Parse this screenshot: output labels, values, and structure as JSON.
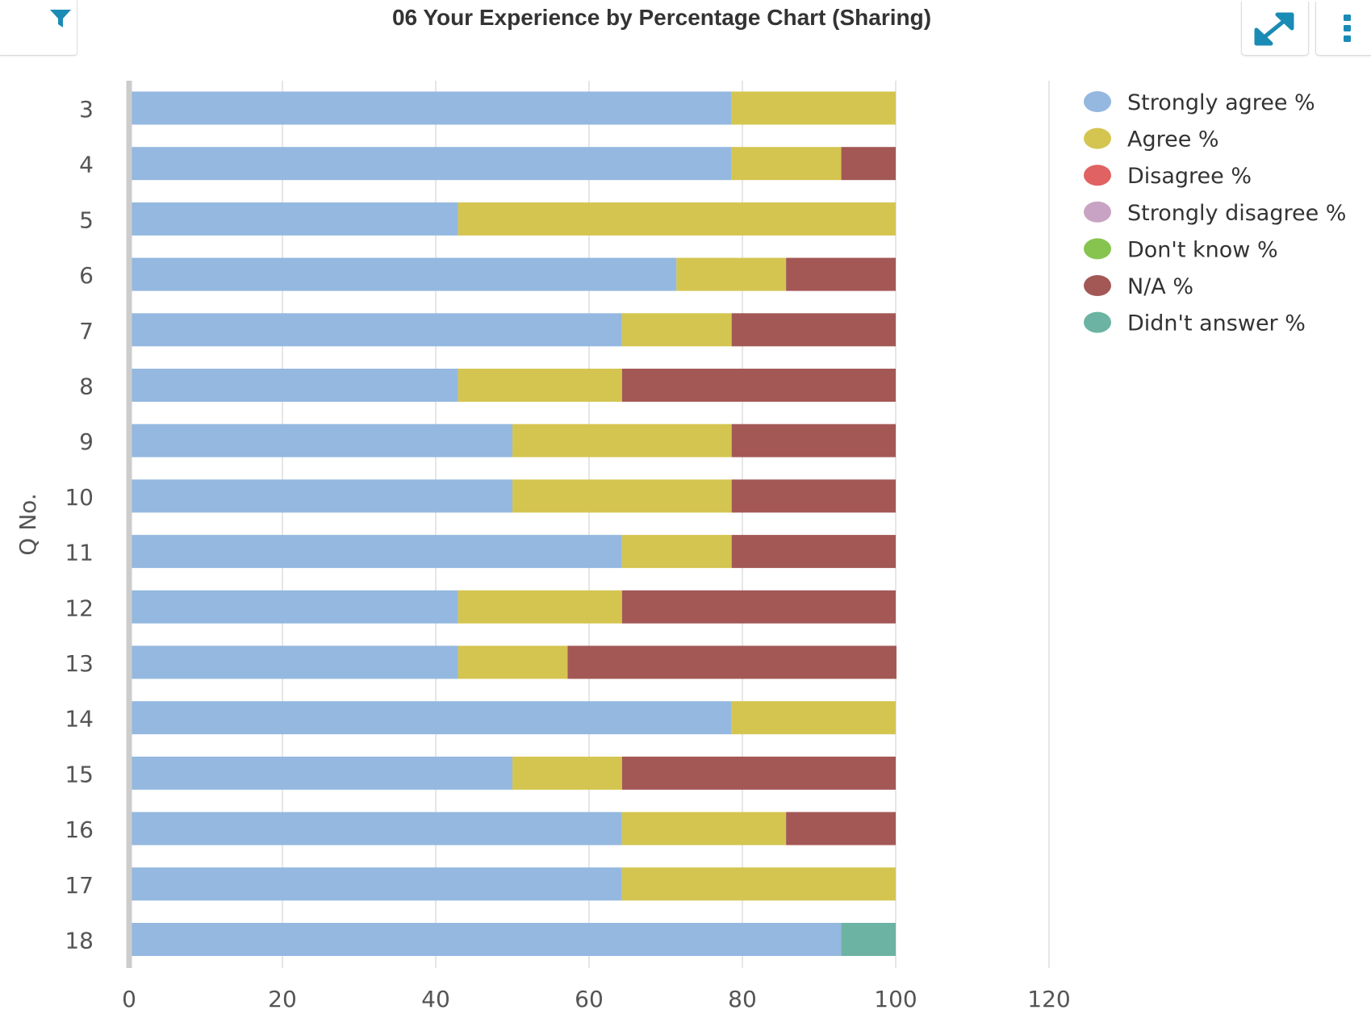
{
  "header": {
    "title": "06 Your Experience by Percentage Chart (Sharing)",
    "icons": [
      "filter-icon",
      "expand-icon",
      "more-vertical-icon"
    ],
    "accent_color": "#1a8bb5"
  },
  "chart_data": {
    "type": "bar",
    "orientation": "horizontal",
    "stacked": true,
    "categories": [
      "3",
      "4",
      "5",
      "6",
      "7",
      "8",
      "9",
      "10",
      "11",
      "12",
      "13",
      "14",
      "15",
      "16",
      "17",
      "18"
    ],
    "ylabel": "Q No.",
    "xlabel": "",
    "xlim": [
      0,
      120
    ],
    "xticks": [
      0,
      20,
      40,
      60,
      80,
      100,
      120
    ],
    "grid": true,
    "legend_position": "right",
    "series": [
      {
        "name": "Strongly agree %",
        "color": "#94b8e0",
        "values": [
          78.6,
          78.6,
          42.9,
          71.4,
          64.3,
          42.9,
          50,
          50,
          64.3,
          42.9,
          42.9,
          78.6,
          50,
          64.3,
          64.3,
          92.9
        ]
      },
      {
        "name": "Agree %",
        "color": "#d4c550",
        "values": [
          21.4,
          14.3,
          57.1,
          14.3,
          14.3,
          21.4,
          28.6,
          28.6,
          14.3,
          21.4,
          14.3,
          21.4,
          14.3,
          21.4,
          35.7,
          0
        ]
      },
      {
        "name": "Disagree %",
        "color": "#e06262",
        "values": [
          0,
          0,
          0,
          0,
          0,
          0,
          0,
          0,
          0,
          0,
          0,
          0,
          0,
          0,
          0,
          0
        ]
      },
      {
        "name": "Strongly disagree %",
        "color": "#c9a3c3",
        "values": [
          0,
          0,
          0,
          0,
          0,
          0,
          0,
          0,
          0,
          0,
          0,
          0,
          0,
          0,
          0,
          0
        ]
      },
      {
        "name": "Don't know %",
        "color": "#86c44f",
        "values": [
          0,
          0,
          0,
          0,
          0,
          0,
          0,
          0,
          0,
          0,
          0,
          0,
          0,
          0,
          0,
          0
        ]
      },
      {
        "name": "N/A %",
        "color": "#a35856",
        "values": [
          0,
          7.1,
          0,
          14.3,
          21.4,
          35.7,
          21.4,
          21.4,
          21.4,
          35.7,
          42.9,
          0,
          35.7,
          14.3,
          0,
          0
        ]
      },
      {
        "name": "Didn't answer %",
        "color": "#6cb3a3",
        "values": [
          0,
          0,
          0,
          0,
          0,
          0,
          0,
          0,
          0,
          0,
          0,
          0,
          0,
          0,
          0,
          7.1
        ]
      }
    ]
  }
}
